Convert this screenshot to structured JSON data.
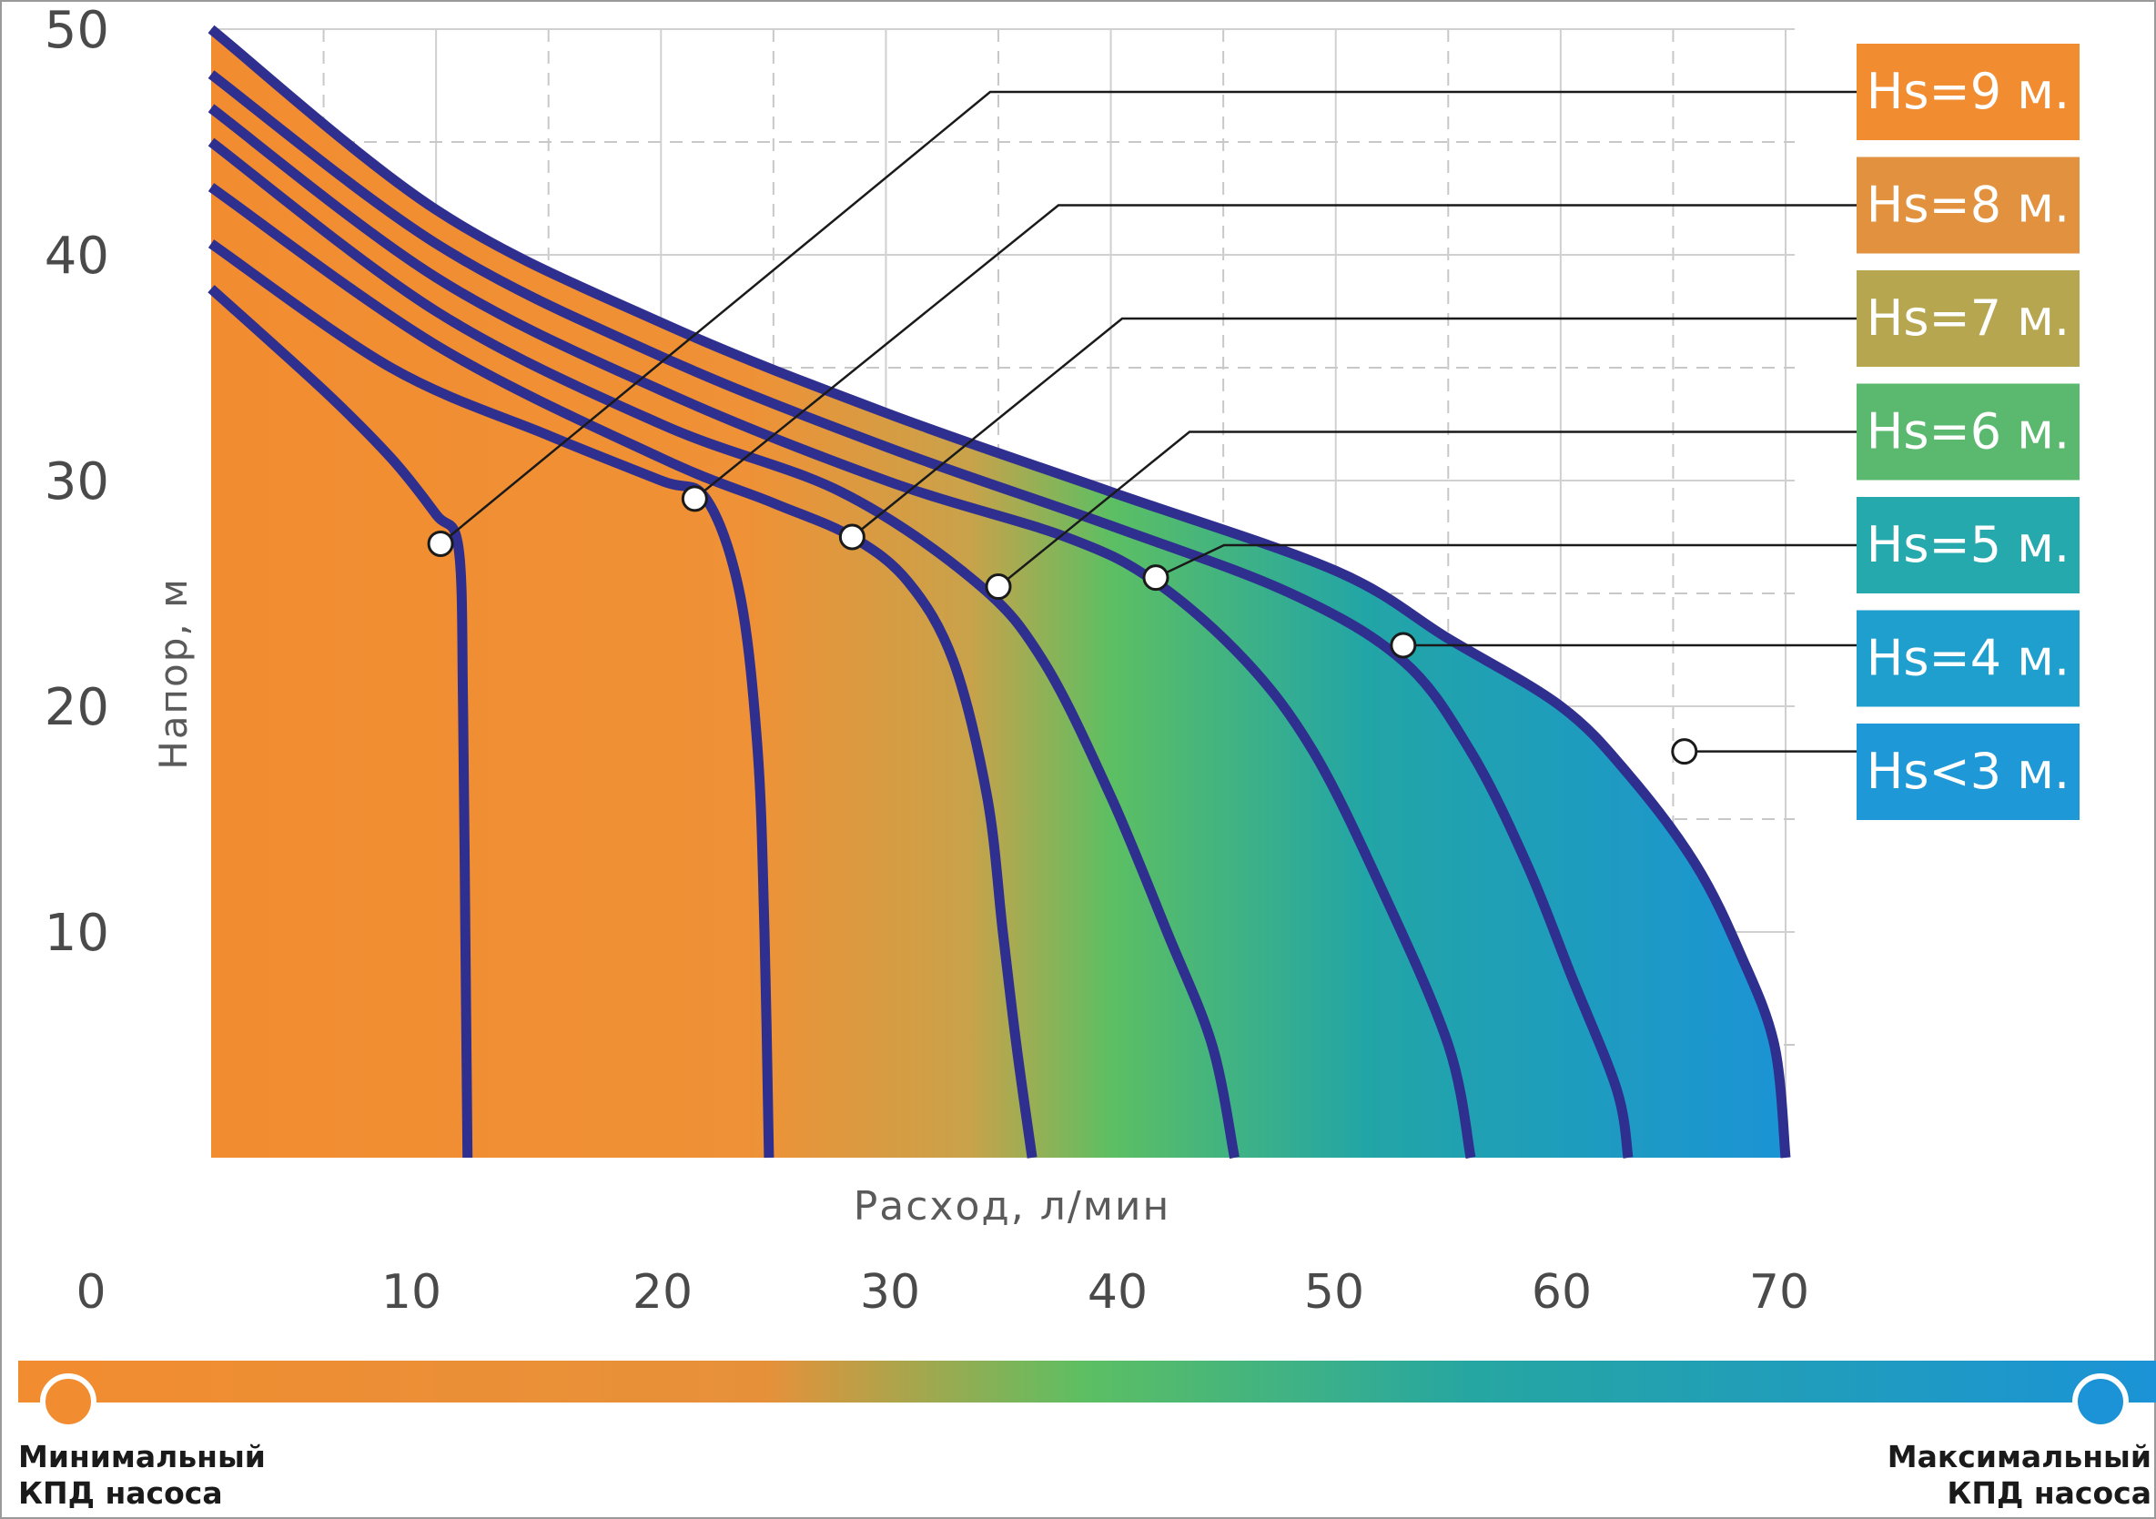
{
  "chart_data": {
    "type": "line",
    "title": "",
    "xlabel": "Расход, л/мин",
    "ylabel": "Напор, м",
    "xlim": [
      0,
      70
    ],
    "ylim": [
      0,
      50
    ],
    "x_ticks": [
      0,
      10,
      20,
      30,
      40,
      50,
      60,
      70
    ],
    "y_ticks": [
      10,
      20,
      30,
      40,
      50
    ],
    "grid": true,
    "legend_position": "right",
    "series": [
      {
        "name": "Hs<3 м.",
        "color": "#1e98d6",
        "points": [
          [
            0,
            50
          ],
          [
            10,
            42
          ],
          [
            20,
            37
          ],
          [
            30,
            33
          ],
          [
            40,
            29.5
          ],
          [
            50,
            26
          ],
          [
            55,
            23
          ],
          [
            60,
            20
          ],
          [
            63,
            17
          ],
          [
            66,
            13
          ],
          [
            68,
            9
          ],
          [
            69.5,
            5
          ],
          [
            70,
            0
          ]
        ],
        "marker": [
          65.5,
          18
        ]
      },
      {
        "name": "Hs=4 м.",
        "color": "#1f9fce",
        "points": [
          [
            0,
            48
          ],
          [
            10,
            40.5
          ],
          [
            20,
            35.5
          ],
          [
            30,
            31.5
          ],
          [
            40,
            28
          ],
          [
            48,
            25
          ],
          [
            53,
            22
          ],
          [
            56,
            18
          ],
          [
            58.5,
            13
          ],
          [
            60.5,
            8
          ],
          [
            62.5,
            3
          ],
          [
            63,
            0
          ]
        ],
        "marker": [
          53,
          22.7
        ]
      },
      {
        "name": "Hs=5 м.",
        "color": "#25a9ad",
        "points": [
          [
            0,
            46.5
          ],
          [
            10,
            39
          ],
          [
            20,
            34
          ],
          [
            30,
            30
          ],
          [
            38,
            27.5
          ],
          [
            42,
            25.5
          ],
          [
            46,
            22
          ],
          [
            49,
            18
          ],
          [
            52,
            12
          ],
          [
            55,
            5
          ],
          [
            56,
            0
          ]
        ],
        "marker": [
          42,
          25.7
        ]
      },
      {
        "name": "Hs=6 м.",
        "color": "#5ab96e",
        "points": [
          [
            0,
            45
          ],
          [
            10,
            37.5
          ],
          [
            20,
            32.5
          ],
          [
            28,
            29.5
          ],
          [
            34,
            25.5
          ],
          [
            37,
            22
          ],
          [
            40,
            16
          ],
          [
            42.5,
            10
          ],
          [
            44.5,
            5
          ],
          [
            45.5,
            0
          ]
        ],
        "marker": [
          35,
          25.3
        ]
      },
      {
        "name": "Hs=7 м.",
        "color": "#b6a64f",
        "points": [
          [
            0,
            43
          ],
          [
            10,
            36
          ],
          [
            20,
            31
          ],
          [
            25,
            29
          ],
          [
            28.5,
            27.5
          ],
          [
            31,
            25.5
          ],
          [
            33,
            22
          ],
          [
            34.5,
            16
          ],
          [
            35.2,
            10
          ],
          [
            35.8,
            5
          ],
          [
            36.5,
            0
          ]
        ],
        "marker": [
          28.5,
          27.5
        ]
      },
      {
        "name": "Hs=8 м.",
        "color": "#e2913e",
        "points": [
          [
            0,
            40.5
          ],
          [
            8,
            35
          ],
          [
            15,
            32
          ],
          [
            20,
            30
          ],
          [
            22,
            29.2
          ],
          [
            23.5,
            25
          ],
          [
            24.3,
            18
          ],
          [
            24.6,
            10
          ],
          [
            24.8,
            0
          ]
        ],
        "marker": [
          21.5,
          29.2
        ]
      },
      {
        "name": "Hs=9 м.",
        "color": "#f28c30",
        "points": [
          [
            0,
            38.5
          ],
          [
            5,
            34
          ],
          [
            8,
            31
          ],
          [
            10,
            28.5
          ],
          [
            11,
            27
          ],
          [
            11.2,
            20
          ],
          [
            11.3,
            10
          ],
          [
            11.4,
            0
          ]
        ],
        "marker": [
          10.2,
          27.2
        ]
      }
    ]
  },
  "gradient_bar": {
    "left_label_line1": "Минимальный",
    "left_label_line2": "КПД насоса",
    "right_label_line1": "Максимальный",
    "right_label_line2": "КПД насоса",
    "color_min": "#f28c30",
    "color_mid": "#5cbf63",
    "color_max": "#1b93d6"
  },
  "colors": {
    "curve_stroke": "#2e2f8f",
    "grid_solid": "#d0d0d0",
    "grid_dashed": "#c8c8c8",
    "tick_text": "#4a4a4a",
    "axis_title_text": "#5a5a5a",
    "leader_line": "#1a1a1a",
    "label_text": "#ffffff",
    "frame": "#9a9a9a"
  }
}
